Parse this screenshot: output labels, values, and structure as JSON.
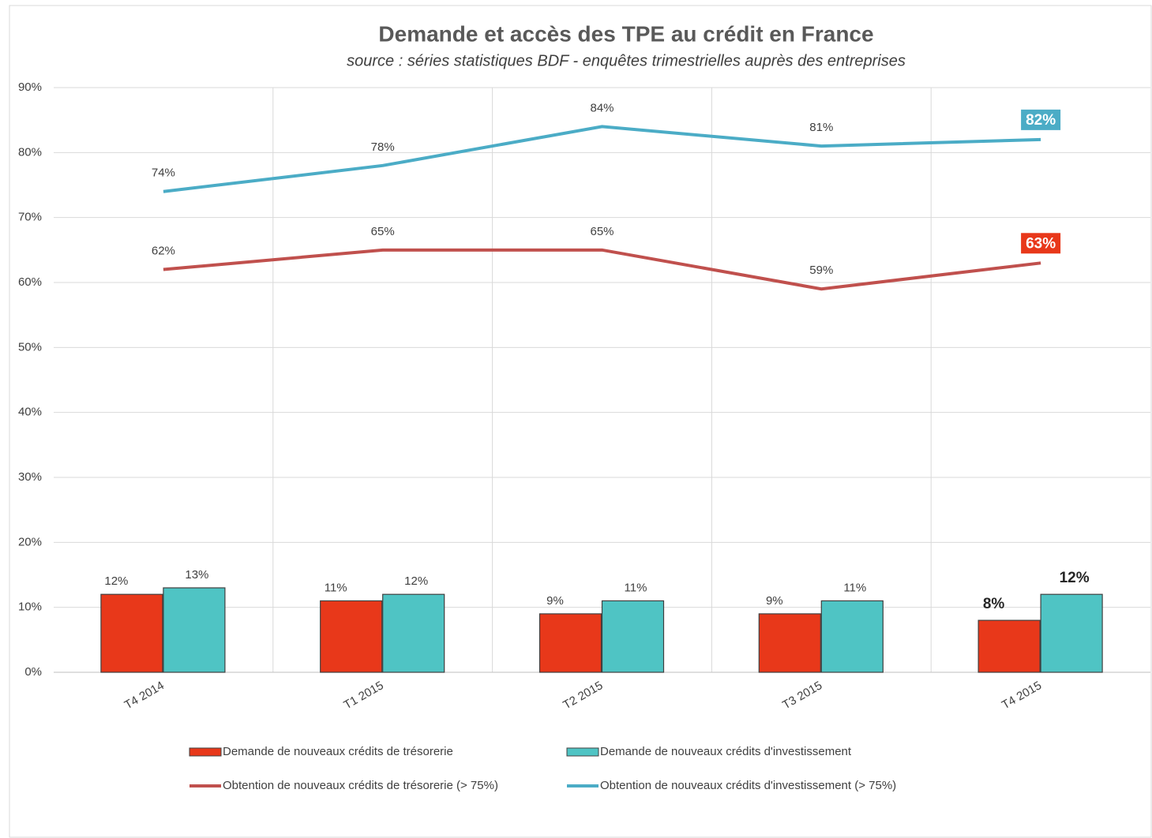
{
  "chart_data": {
    "type": "combo",
    "title": "Demande et accès des TPE au crédit en France",
    "subtitle": "source : séries statistiques BDF - enquêtes trimestrielles auprès des entreprises",
    "categories": [
      "T4 2014",
      "T1 2015",
      "T2 2015",
      "T3 2015",
      "T4 2015"
    ],
    "series": [
      {
        "name": "Demande de nouveaux crédits de trésorerie",
        "type": "bar",
        "color": "#e8381a",
        "values": [
          12,
          11,
          9,
          9,
          8
        ],
        "value_labels": [
          "12%",
          "11%",
          "9%",
          "9%",
          "8%"
        ]
      },
      {
        "name": "Demande de nouveaux crédits d'investissement",
        "type": "bar",
        "color": "#4fc4c4",
        "values": [
          13,
          12,
          11,
          11,
          12
        ],
        "value_labels": [
          "13%",
          "12%",
          "11%",
          "11%",
          "12%"
        ]
      },
      {
        "name": "Obtention de nouveaux crédits de trésorerie (> 75%)",
        "type": "line",
        "color": "#c0504d",
        "values": [
          62,
          65,
          65,
          59,
          63
        ],
        "value_labels": [
          "62%",
          "65%",
          "65%",
          "59%",
          "63%"
        ]
      },
      {
        "name": "Obtention de nouveaux crédits d'investissement (> 75%)",
        "type": "line",
        "color": "#4bacc6",
        "values": [
          74,
          78,
          84,
          81,
          82
        ],
        "value_labels": [
          "74%",
          "78%",
          "84%",
          "81%",
          "82%"
        ]
      }
    ],
    "ylim": [
      0,
      90
    ],
    "yticks": [
      {
        "value": 0,
        "label": "0%"
      },
      {
        "value": 10,
        "label": "10%"
      },
      {
        "value": 20,
        "label": "20%"
      },
      {
        "value": 30,
        "label": "30%"
      },
      {
        "value": 40,
        "label": "40%"
      },
      {
        "value": 50,
        "label": "50%"
      },
      {
        "value": 60,
        "label": "60%"
      },
      {
        "value": 70,
        "label": "70%"
      },
      {
        "value": 80,
        "label": "80%"
      },
      {
        "value": 90,
        "label": "90%"
      }
    ],
    "grid": true
  }
}
